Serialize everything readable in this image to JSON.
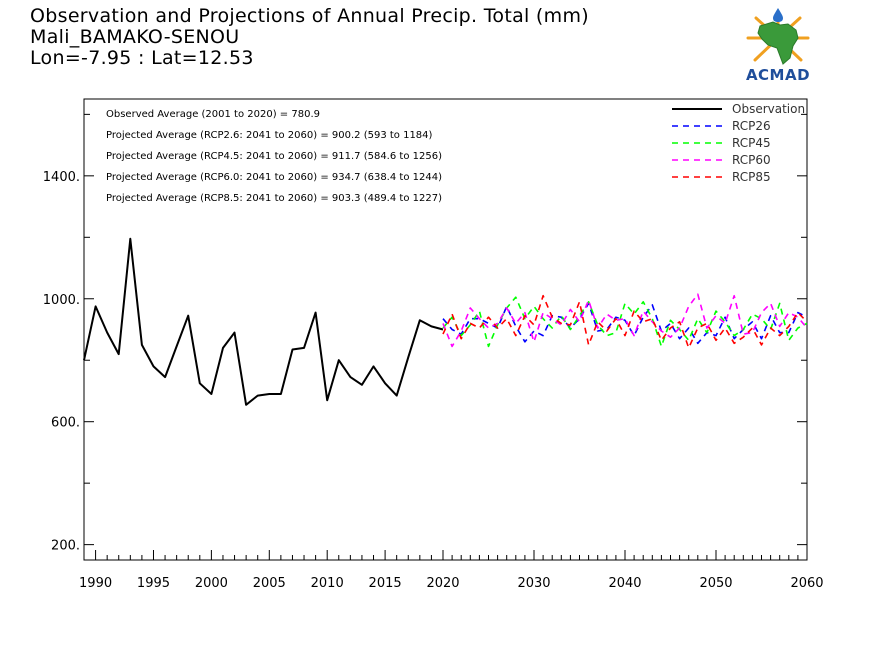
{
  "header": {
    "title": "Observation and Projections of Annual Precip. Total (mm)",
    "station": "Mali_BAMAKO-SENOU",
    "coords": "Lon=-7.95 : Lat=12.53"
  },
  "logo": {
    "text": "ACMAD",
    "icon": "africa-map-logo-icon",
    "colors": {
      "map": "#3a9a3a",
      "rays": "#f0a020",
      "drop": "#2a6fc9",
      "text": "#1f4e9b"
    }
  },
  "stats": [
    "Observed Average (2001 to 2020) = 780.9",
    "Projected Average (RCP2.6: 2041 to 2060) = 900.2 (593 to 1184)",
    "Projected Average (RCP4.5: 2041 to 2060) = 911.7 (584.6 to 1256)",
    "Projected Average (RCP6.0: 2041 to 2060) = 934.7 (638.4 to 1244)",
    "Projected Average (RCP8.5: 2041 to 2060) = 903.3 (489.4 to 1227)"
  ],
  "chart_data": {
    "type": "line",
    "xlim": [
      1989,
      2060
    ],
    "ylim": [
      150,
      1650
    ],
    "x_ticks": [
      1990,
      1995,
      2000,
      2005,
      2010,
      2015,
      2020,
      2030,
      2040,
      2050,
      2060
    ],
    "y_ticks": [
      200,
      600,
      1000,
      1400
    ],
    "y_tick_labels": [
      "200.",
      "600.",
      "1000.",
      "1400."
    ],
    "legend": {
      "placement": "top-right"
    },
    "series": [
      {
        "name": "Observation",
        "color": "#000000",
        "style": "solid",
        "x": [
          1989,
          1990,
          1991,
          1992,
          1993,
          1994,
          1995,
          1996,
          1997,
          1998,
          1999,
          2000,
          2001,
          2002,
          2003,
          2004,
          2005,
          2006,
          2007,
          2008,
          2009,
          2010,
          2011,
          2012,
          2013,
          2014,
          2015,
          2016,
          2017,
          2018,
          2019,
          2020
        ],
        "y": [
          800,
          975,
          890,
          820,
          1195,
          850,
          780,
          745,
          845,
          945,
          725,
          690,
          840,
          890,
          655,
          685,
          690,
          690,
          835,
          840,
          955,
          670,
          800,
          745,
          720,
          780,
          725,
          685,
          810,
          930,
          910,
          900
        ]
      },
      {
        "name": "RCP26",
        "color": "#0000ff",
        "style": "dashed",
        "x": [
          2020,
          2021,
          2022,
          2023,
          2024,
          2025,
          2026,
          2027,
          2028,
          2029,
          2030,
          2031,
          2032,
          2033,
          2034,
          2035,
          2036,
          2037,
          2038,
          2039,
          2040,
          2041,
          2042,
          2043,
          2044,
          2045,
          2046,
          2047,
          2048,
          2049,
          2050,
          2051,
          2052,
          2053,
          2054,
          2055,
          2056,
          2057,
          2058,
          2059,
          2060
        ],
        "y": [
          935,
          900,
          885,
          935,
          935,
          920,
          905,
          975,
          910,
          860,
          895,
          880,
          945,
          940,
          905,
          935,
          985,
          895,
          900,
          940,
          930,
          880,
          940,
          980,
          895,
          920,
          870,
          905,
          855,
          890,
          880,
          940,
          870,
          900,
          925,
          870,
          945,
          890,
          890,
          955,
          940
        ]
      },
      {
        "name": "RCP45",
        "color": "#00ff00",
        "style": "dashed",
        "x": [
          2020,
          2021,
          2022,
          2023,
          2024,
          2025,
          2026,
          2027,
          2028,
          2029,
          2030,
          2031,
          2032,
          2033,
          2034,
          2035,
          2036,
          2037,
          2038,
          2039,
          2040,
          2041,
          2042,
          2043,
          2044,
          2045,
          2046,
          2047,
          2048,
          2049,
          2050,
          2051,
          2052,
          2053,
          2054,
          2055,
          2056,
          2057,
          2058,
          2059,
          2060
        ],
        "y": [
          905,
          940,
          880,
          915,
          960,
          845,
          915,
          970,
          1005,
          935,
          975,
          935,
          905,
          945,
          900,
          945,
          990,
          915,
          880,
          890,
          985,
          950,
          990,
          935,
          845,
          930,
          900,
          865,
          935,
          890,
          960,
          925,
          880,
          900,
          950,
          935,
          900,
          985,
          865,
          905,
          920
        ]
      },
      {
        "name": "RCP60",
        "color": "#ff00ff",
        "style": "dashed",
        "x": [
          2020,
          2021,
          2022,
          2023,
          2024,
          2025,
          2026,
          2027,
          2028,
          2029,
          2030,
          2031,
          2032,
          2033,
          2034,
          2035,
          2036,
          2037,
          2038,
          2039,
          2040,
          2041,
          2042,
          2043,
          2044,
          2045,
          2046,
          2047,
          2048,
          2049,
          2050,
          2051,
          2052,
          2053,
          2054,
          2055,
          2056,
          2057,
          2058,
          2059,
          2060
        ],
        "y": [
          920,
          845,
          895,
          970,
          935,
          905,
          920,
          970,
          920,
          955,
          860,
          955,
          935,
          915,
          965,
          925,
          995,
          905,
          950,
          930,
          935,
          880,
          960,
          925,
          895,
          875,
          905,
          975,
          1015,
          905,
          945,
          920,
          1010,
          885,
          890,
          955,
          985,
          910,
          955,
          940,
          905
        ]
      },
      {
        "name": "RCP85",
        "color": "#ff0000",
        "style": "dashed",
        "x": [
          2020,
          2021,
          2022,
          2023,
          2024,
          2025,
          2026,
          2027,
          2028,
          2029,
          2030,
          2031,
          2032,
          2033,
          2034,
          2035,
          2036,
          2037,
          2038,
          2039,
          2040,
          2041,
          2042,
          2043,
          2044,
          2045,
          2046,
          2047,
          2048,
          2049,
          2050,
          2051,
          2052,
          2053,
          2054,
          2055,
          2056,
          2057,
          2058,
          2059,
          2060
        ],
        "y": [
          885,
          950,
          870,
          920,
          905,
          940,
          905,
          935,
          880,
          945,
          915,
          1010,
          940,
          920,
          915,
          990,
          850,
          925,
          895,
          935,
          880,
          960,
          925,
          935,
          865,
          905,
          925,
          840,
          905,
          920,
          865,
          905,
          855,
          875,
          905,
          850,
          905,
          880,
          910,
          955,
          925
        ]
      }
    ]
  }
}
